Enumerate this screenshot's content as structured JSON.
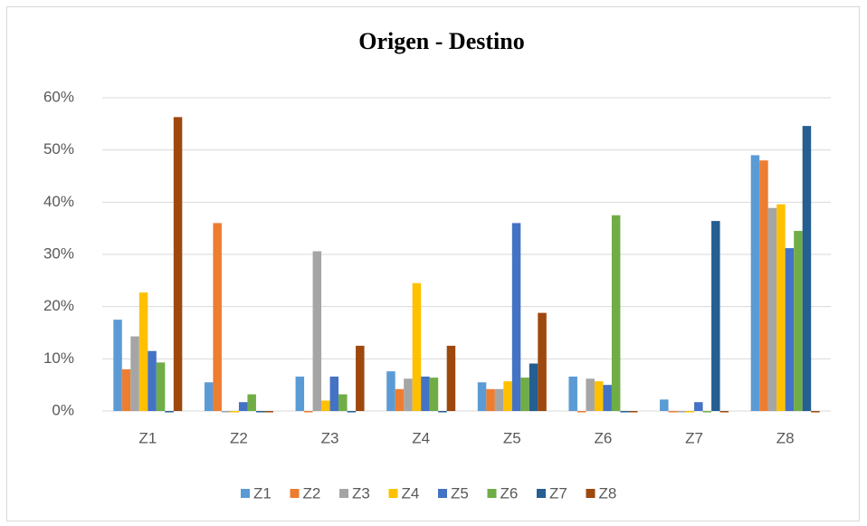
{
  "chart_data": {
    "type": "bar",
    "title": "Origen - Destino",
    "categories": [
      "Z1",
      "Z2",
      "Z3",
      "Z4",
      "Z5",
      "Z6",
      "Z7",
      "Z8"
    ],
    "series": [
      {
        "name": "Z1",
        "color": "#5b9bd5",
        "values": [
          17.5,
          5.5,
          6.6,
          7.6,
          5.5,
          6.6,
          2.2,
          49
        ]
      },
      {
        "name": "Z2",
        "color": "#ed7d31",
        "values": [
          8,
          36,
          0,
          4.2,
          4.2,
          0,
          0,
          48
        ]
      },
      {
        "name": "Z3",
        "color": "#a5a5a5",
        "values": [
          14.3,
          0,
          30.6,
          6.2,
          4.2,
          6.2,
          0,
          38.9
        ]
      },
      {
        "name": "Z4",
        "color": "#ffc000",
        "values": [
          22.7,
          0,
          2,
          24.5,
          5.7,
          5.7,
          0,
          39.6
        ]
      },
      {
        "name": "Z5",
        "color": "#4472c4",
        "values": [
          11.5,
          1.7,
          6.6,
          6.6,
          36,
          5,
          1.7,
          31.2
        ]
      },
      {
        "name": "Z6",
        "color": "#70ad47",
        "values": [
          9.3,
          3.2,
          3.2,
          6.4,
          6.4,
          37.5,
          0,
          34.5
        ]
      },
      {
        "name": "Z7",
        "color": "#255e91",
        "values": [
          0,
          0,
          0,
          0,
          9.1,
          0,
          36.4,
          54.6
        ]
      },
      {
        "name": "Z8",
        "color": "#9e480e",
        "values": [
          56.3,
          0,
          12.5,
          12.5,
          18.8,
          0,
          0,
          0
        ]
      }
    ],
    "ylim": [
      0,
      60
    ],
    "yticks": [
      {
        "value": 0,
        "label": "0%"
      },
      {
        "value": 10,
        "label": "10%"
      },
      {
        "value": 20,
        "label": "20%"
      },
      {
        "value": 30,
        "label": "30%"
      },
      {
        "value": 40,
        "label": "40%"
      },
      {
        "value": 50,
        "label": "50%"
      },
      {
        "value": 60,
        "label": "60%"
      }
    ],
    "grid": true,
    "legend": "bottom"
  }
}
